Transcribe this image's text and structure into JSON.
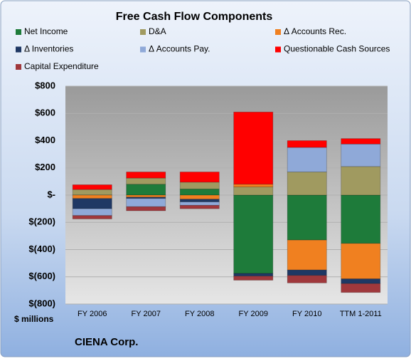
{
  "chart_data": {
    "type": "bar",
    "stacked": true,
    "title": "Free Cash Flow Components",
    "ylabel": "$ millions",
    "footnote": "CIENA Corp.",
    "categories": [
      "FY 2006",
      "FY 2007",
      "FY 2008",
      "FY 2009",
      "FY 2010",
      "TTM 1-2011"
    ],
    "series": [
      {
        "name": "Net Income",
        "color": "#1e7b3a",
        "values": [
          1,
          80,
          45,
          -575,
          -330,
          -355
        ]
      },
      {
        "name": "D&A",
        "color": "#a09a60",
        "values": [
          40,
          45,
          50,
          60,
          170,
          210
        ]
      },
      {
        "name": "Δ Accounts Rec.",
        "color": "#f08020",
        "values": [
          -25,
          -15,
          -30,
          20,
          -220,
          -260
        ]
      },
      {
        "name": "Δ Inventories",
        "color": "#1f3864",
        "values": [
          -75,
          -10,
          -20,
          -20,
          -40,
          -35
        ]
      },
      {
        "name": "Δ Accounts Pay.",
        "color": "#8fa9d8",
        "values": [
          -50,
          -60,
          -25,
          0,
          180,
          165
        ]
      },
      {
        "name": "Questionable Cash Sources",
        "color": "#ff0000",
        "values": [
          35,
          45,
          75,
          530,
          50,
          40
        ]
      },
      {
        "name": "Capital Expenditure",
        "color": "#a0383c",
        "values": [
          -25,
          -30,
          -25,
          -30,
          -55,
          -65
        ]
      }
    ],
    "ylim": [
      -800,
      800
    ],
    "yticks": [
      {
        "value": 800,
        "label": "$800"
      },
      {
        "value": 600,
        "label": "$600"
      },
      {
        "value": 400,
        "label": "$400"
      },
      {
        "value": 200,
        "label": "$200"
      },
      {
        "value": 0,
        "label": "$-"
      },
      {
        "value": -200,
        "label": "$(200)"
      },
      {
        "value": -400,
        "label": "$(400)"
      },
      {
        "value": -600,
        "label": "$(600)"
      },
      {
        "value": -800,
        "label": "$(800)"
      }
    ],
    "grid": true
  }
}
